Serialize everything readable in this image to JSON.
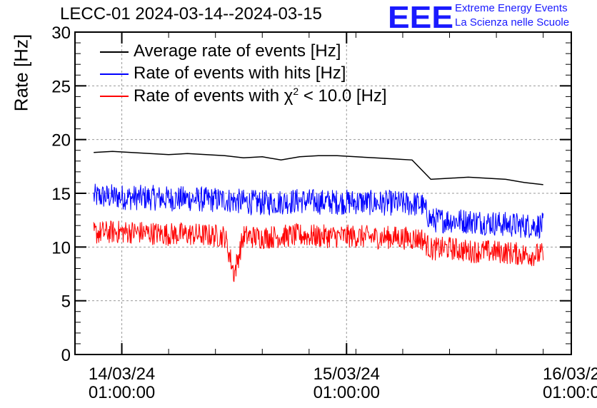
{
  "title": "LECC-01 2024-03-14--2024-03-15",
  "logo": {
    "mark": "EEE",
    "line1": "Extreme Energy Events",
    "line2": "La Scienza nelle Scuole",
    "color": "#1a1aff"
  },
  "legend": [
    {
      "prefix": "Average rate of events [Hz]",
      "sup": "",
      "suffix": "",
      "color": "#000000"
    },
    {
      "prefix": "Rate of events with hits [Hz]",
      "sup": "",
      "suffix": "",
      "color": "#0000ff"
    },
    {
      "prefix": "Rate of events with χ",
      "sup": "2",
      "suffix": " < 10.0 [Hz]",
      "color": "#ff0000"
    }
  ],
  "chart_data": {
    "type": "line",
    "title": "LECC-01 2024-03-14--2024-03-15",
    "xlabel": "",
    "ylabel": "Rate [Hz]",
    "xlim": [
      "2024-03-13 20:00",
      "2024-03-16 01:00"
    ],
    "ylim": [
      0,
      30
    ],
    "yticks": [
      0,
      5,
      10,
      15,
      20,
      25,
      30
    ],
    "xticks": [
      {
        "line1": "14/03/24",
        "line2": "01:00:00"
      },
      {
        "line1": "15/03/24",
        "line2": "01:00:00"
      },
      {
        "line1": "16/03/2",
        "line2": "01:00:0"
      }
    ],
    "grid": true,
    "legend_position": "top-left",
    "series": [
      {
        "name": "Average rate of events [Hz]",
        "color": "#000000",
        "x": [
          "2024-03-13 22:00",
          "2024-03-14 00:00",
          "2024-03-14 02:00",
          "2024-03-14 04:00",
          "2024-03-14 06:00",
          "2024-03-14 08:00",
          "2024-03-14 10:00",
          "2024-03-14 12:00",
          "2024-03-14 14:00",
          "2024-03-14 16:00",
          "2024-03-14 18:00",
          "2024-03-14 20:00",
          "2024-03-14 22:00",
          "2024-03-15 00:00",
          "2024-03-15 02:00",
          "2024-03-15 04:00",
          "2024-03-15 06:00",
          "2024-03-15 08:00",
          "2024-03-15 10:00",
          "2024-03-15 12:00",
          "2024-03-15 14:00",
          "2024-03-15 16:00",
          "2024-03-15 18:00",
          "2024-03-15 20:00",
          "2024-03-15 22:00"
        ],
        "values": [
          18.8,
          18.9,
          18.8,
          18.7,
          18.6,
          18.7,
          18.6,
          18.5,
          18.3,
          18.4,
          18.1,
          18.4,
          18.5,
          18.5,
          18.4,
          18.3,
          18.2,
          18.1,
          16.3,
          16.4,
          16.5,
          16.4,
          16.3,
          16.0,
          15.8
        ]
      },
      {
        "name": "Rate of events with hits [Hz]",
        "color": "#0000ff",
        "x": [
          "2024-03-13 22:00",
          "2024-03-14 00:00",
          "2024-03-14 02:00",
          "2024-03-14 04:00",
          "2024-03-14 06:00",
          "2024-03-14 08:00",
          "2024-03-14 10:00",
          "2024-03-14 12:00",
          "2024-03-14 13:00",
          "2024-03-14 14:00",
          "2024-03-14 16:00",
          "2024-03-14 18:00",
          "2024-03-14 20:00",
          "2024-03-14 22:00",
          "2024-03-15 00:00",
          "2024-03-15 02:00",
          "2024-03-15 04:00",
          "2024-03-15 06:00",
          "2024-03-15 08:00",
          "2024-03-15 09:00",
          "2024-03-15 10:00",
          "2024-03-15 12:00",
          "2024-03-15 14:00",
          "2024-03-15 16:00",
          "2024-03-15 18:00",
          "2024-03-15 20:00",
          "2024-03-15 22:00"
        ],
        "values": [
          14.7,
          14.7,
          14.6,
          14.6,
          14.5,
          14.5,
          14.4,
          14.4,
          14.3,
          14.2,
          14.1,
          14.2,
          14.3,
          14.2,
          14.2,
          14.2,
          14.1,
          14.1,
          14.0,
          14.0,
          12.5,
          12.5,
          12.4,
          12.3,
          12.1,
          12.0,
          12.0
        ]
      },
      {
        "name": "Rate of events with χ2 < 10.0 [Hz]",
        "color": "#ff0000",
        "x": [
          "2024-03-13 22:00",
          "2024-03-14 00:00",
          "2024-03-14 02:00",
          "2024-03-14 04:00",
          "2024-03-14 06:00",
          "2024-03-14 08:00",
          "2024-03-14 10:00",
          "2024-03-14 12:00",
          "2024-03-14 13:00",
          "2024-03-14 14:00",
          "2024-03-14 16:00",
          "2024-03-14 18:00",
          "2024-03-14 20:00",
          "2024-03-14 22:00",
          "2024-03-15 00:00",
          "2024-03-15 02:00",
          "2024-03-15 04:00",
          "2024-03-15 06:00",
          "2024-03-15 08:00",
          "2024-03-15 09:00",
          "2024-03-15 10:00",
          "2024-03-15 12:00",
          "2024-03-15 14:00",
          "2024-03-15 16:00",
          "2024-03-15 18:00",
          "2024-03-15 20:00",
          "2024-03-15 22:00"
        ],
        "values": [
          11.3,
          11.4,
          11.4,
          11.3,
          11.2,
          11.2,
          11.1,
          11.0,
          7.5,
          11.0,
          10.9,
          11.0,
          11.1,
          11.0,
          11.0,
          11.0,
          10.9,
          10.9,
          10.8,
          10.8,
          9.8,
          9.9,
          9.6,
          9.6,
          9.5,
          9.3,
          9.3
        ]
      }
    ]
  }
}
